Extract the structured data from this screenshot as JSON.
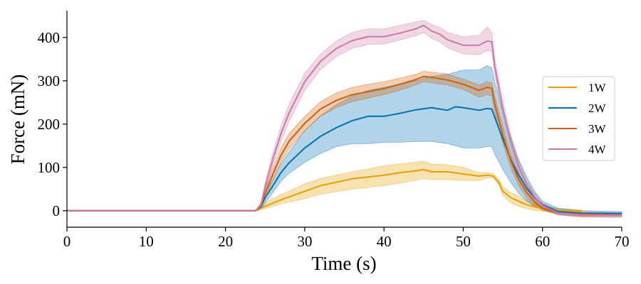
{
  "chart_data": {
    "type": "line",
    "xlabel": "Time (s)",
    "ylabel": "Force (mN)",
    "xlim": [
      0,
      70
    ],
    "ylim": [
      -38,
      462
    ],
    "xticks": [
      0,
      10,
      20,
      30,
      40,
      50,
      60,
      70
    ],
    "yticks": [
      0,
      100,
      200,
      300,
      400
    ],
    "grid": false,
    "legend_position": "right",
    "series": [
      {
        "name": "1W",
        "color": "#E69F00",
        "x": [
          0,
          10,
          20,
          23.5,
          24,
          25,
          26,
          27,
          28,
          30,
          32,
          34,
          36,
          38,
          40,
          42,
          44,
          45,
          46,
          48,
          50,
          52,
          53,
          53.8,
          54.5,
          55,
          56,
          57,
          58,
          59,
          60,
          62,
          65
        ],
        "y": [
          0,
          0,
          0,
          0,
          2,
          10,
          18,
          25,
          32,
          45,
          58,
          66,
          74,
          78,
          82,
          88,
          92,
          95,
          90,
          90,
          85,
          80,
          82,
          80,
          65,
          45,
          30,
          22,
          14,
          9,
          5,
          1,
          -2
        ],
        "lower": [
          0,
          0,
          0,
          0,
          0,
          5,
          10,
          16,
          20,
          28,
          38,
          44,
          50,
          54,
          58,
          64,
          70,
          75,
          72,
          72,
          70,
          70,
          76,
          76,
          60,
          35,
          18,
          10,
          5,
          1,
          -1,
          -5,
          -8
        ],
        "upper": [
          0,
          0,
          0,
          0,
          5,
          18,
          28,
          38,
          45,
          62,
          75,
          82,
          90,
          96,
          104,
          108,
          112,
          114,
          108,
          106,
          100,
          88,
          88,
          86,
          72,
          55,
          42,
          34,
          24,
          16,
          10,
          6,
          2
        ]
      },
      {
        "name": "2W",
        "color": "#0072B2",
        "x": [
          0,
          10,
          20,
          23.8,
          24.5,
          25,
          26,
          27,
          28,
          30,
          32,
          34,
          36,
          38,
          40,
          42,
          44,
          46,
          48,
          49,
          50,
          52,
          53,
          53.6,
          54,
          55,
          56,
          57,
          58,
          59,
          60,
          62,
          65,
          70
        ],
        "y": [
          0,
          0,
          0,
          0,
          10,
          30,
          58,
          88,
          110,
          145,
          172,
          192,
          208,
          218,
          218,
          225,
          233,
          238,
          232,
          240,
          238,
          232,
          236,
          235,
          215,
          165,
          118,
          82,
          52,
          30,
          14,
          -2,
          -6,
          -6
        ],
        "lower": [
          0,
          0,
          0,
          0,
          5,
          18,
          42,
          68,
          86,
          112,
          132,
          148,
          155,
          155,
          158,
          158,
          160,
          160,
          155,
          150,
          145,
          145,
          148,
          148,
          130,
          95,
          65,
          40,
          22,
          10,
          3,
          -8,
          -12,
          -12
        ],
        "upper": [
          0,
          0,
          0,
          0,
          15,
          42,
          72,
          108,
          135,
          185,
          220,
          245,
          265,
          278,
          285,
          292,
          300,
          310,
          315,
          320,
          325,
          325,
          335,
          330,
          295,
          230,
          170,
          118,
          78,
          45,
          22,
          5,
          0,
          -2
        ]
      },
      {
        "name": "3W",
        "color": "#D55E00",
        "x": [
          0,
          10,
          20,
          23.8,
          24.5,
          25,
          26,
          27,
          28,
          30,
          32,
          34,
          36,
          38,
          40,
          42,
          44,
          45,
          46,
          48,
          50,
          52,
          53,
          53.6,
          54,
          55,
          56,
          57,
          58,
          59,
          60,
          62,
          65,
          70
        ],
        "y": [
          0,
          0,
          0,
          0,
          12,
          40,
          85,
          128,
          160,
          202,
          235,
          255,
          268,
          275,
          282,
          292,
          303,
          310,
          308,
          302,
          292,
          278,
          285,
          283,
          245,
          175,
          115,
          72,
          42,
          20,
          6,
          -5,
          -8,
          -10
        ],
        "lower": [
          0,
          0,
          0,
          0,
          8,
          30,
          72,
          112,
          142,
          185,
          218,
          238,
          252,
          260,
          268,
          278,
          290,
          298,
          295,
          290,
          280,
          262,
          268,
          265,
          225,
          155,
          98,
          58,
          30,
          12,
          1,
          -10,
          -14,
          -15
        ],
        "upper": [
          0,
          0,
          0,
          0,
          16,
          50,
          98,
          145,
          178,
          218,
          252,
          272,
          285,
          292,
          298,
          306,
          315,
          322,
          320,
          316,
          304,
          290,
          298,
          296,
          262,
          195,
          132,
          86,
          52,
          28,
          12,
          0,
          -3,
          -5
        ]
      },
      {
        "name": "4W",
        "color": "#CC79A7",
        "x": [
          0,
          10,
          20,
          23.8,
          24.5,
          25,
          26,
          27,
          28,
          30,
          32,
          34,
          36,
          38,
          40,
          42,
          44,
          45,
          46,
          47,
          48,
          50,
          52,
          53,
          53.6,
          54,
          55,
          56,
          57,
          58,
          59,
          60,
          62,
          65,
          70
        ],
        "y": [
          0,
          0,
          0,
          0,
          15,
          55,
          120,
          178,
          225,
          298,
          345,
          375,
          393,
          402,
          402,
          410,
          420,
          428,
          415,
          408,
          395,
          382,
          382,
          392,
          390,
          330,
          235,
          160,
          102,
          60,
          32,
          12,
          -5,
          -10,
          -10
        ],
        "lower": [
          0,
          0,
          0,
          0,
          10,
          45,
          105,
          160,
          205,
          278,
          326,
          356,
          375,
          384,
          385,
          394,
          404,
          412,
          398,
          390,
          376,
          362,
          360,
          370,
          368,
          312,
          218,
          145,
          90,
          50,
          24,
          5,
          -10,
          -15,
          -15
        ],
        "upper": [
          0,
          0,
          0,
          0,
          20,
          65,
          135,
          195,
          245,
          318,
          362,
          392,
          412,
          420,
          420,
          428,
          436,
          440,
          430,
          424,
          412,
          402,
          405,
          425,
          412,
          348,
          252,
          175,
          115,
          70,
          40,
          18,
          0,
          -5,
          -5
        ]
      }
    ]
  }
}
